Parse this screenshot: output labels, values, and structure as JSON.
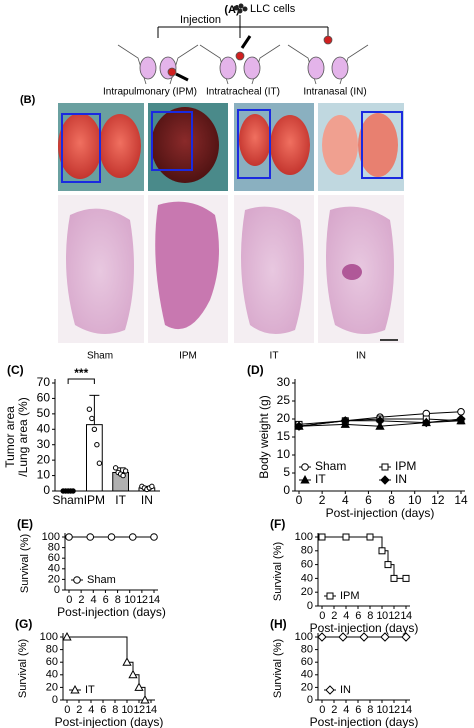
{
  "figure": {
    "panel_a": "(A)",
    "cells": "LLC cells",
    "injection": "Injection",
    "routes": [
      "Intrapulmonary (IPM)",
      "Intratracheal (IT)",
      "Intranasal (IN)"
    ],
    "panel_b": "(B)",
    "groups": [
      "Sham",
      "IPM",
      "IT",
      "IN"
    ]
  },
  "chart_data": [
    {
      "type": "bar",
      "panel": "(C)",
      "ylabel": [
        "Tumor area",
        "/Lung area (%)"
      ],
      "categories": [
        "Sham",
        "IPM",
        "IT",
        "IN"
      ],
      "values": [
        0,
        43,
        12,
        2
      ],
      "errors": [
        0,
        19,
        3,
        1
      ],
      "colors": [
        "#ffffff",
        "#ffffff",
        "#b0b0b0",
        "#ffffff"
      ],
      "points": [
        [
          0,
          0,
          0,
          0,
          0
        ],
        [
          53,
          47,
          40,
          30,
          18
        ],
        [
          15,
          12,
          11,
          10,
          13
        ],
        [
          3,
          2,
          1,
          2,
          3
        ]
      ],
      "annotation": "***",
      "ylim": [
        0,
        70
      ],
      "yticks": [
        0,
        10,
        20,
        30,
        40,
        50,
        60,
        70
      ]
    },
    {
      "type": "line",
      "panel": "(D)",
      "ylabel": "Body weight (g)",
      "xlabel": "Post-injection (days)",
      "xlim": [
        0,
        14
      ],
      "xticks": [
        0,
        2,
        4,
        6,
        8,
        10,
        12,
        14
      ],
      "ylim": [
        0,
        30
      ],
      "yticks": [
        0,
        5,
        10,
        15,
        20,
        25,
        30
      ],
      "series": [
        {
          "name": "Sham",
          "marker": "circle",
          "fill": "#ffffff",
          "x": [
            0,
            4,
            7,
            11,
            14
          ],
          "values": [
            18,
            19.5,
            20.5,
            21.5,
            22
          ]
        },
        {
          "name": "IPM",
          "marker": "square",
          "fill": "#ffffff",
          "x": [
            0,
            4,
            7,
            11,
            14
          ],
          "values": [
            18.5,
            19.5,
            20,
            20,
            19.5
          ]
        },
        {
          "name": "IT",
          "marker": "triangle",
          "fill": "#000000",
          "x": [
            0,
            4,
            7,
            11,
            14
          ],
          "values": [
            18,
            18.5,
            18,
            19,
            19.5
          ]
        },
        {
          "name": "IN",
          "marker": "diamond",
          "fill": "#000000",
          "x": [
            0,
            4,
            7,
            11,
            14
          ],
          "values": [
            18,
            19.5,
            19.5,
            19,
            20
          ]
        }
      ]
    },
    {
      "type": "step",
      "panel": "(E)",
      "ylabel": "Survival (%)",
      "xlabel": "Post-injection (days)",
      "xlim": [
        0,
        14
      ],
      "xticks": [
        0,
        2,
        4,
        6,
        8,
        10,
        12,
        14
      ],
      "ylim": [
        0,
        100
      ],
      "yticks": [
        0,
        20,
        40,
        60,
        80,
        100
      ],
      "series": [
        {
          "name": "Sham",
          "marker": "circle",
          "fill": "#ffffff",
          "x": [
            0,
            3.5,
            7,
            10.5,
            14
          ],
          "values": [
            100,
            100,
            100,
            100,
            100
          ]
        }
      ]
    },
    {
      "type": "step",
      "panel": "(F)",
      "ylabel": "Survival (%)",
      "xlabel": "Post-injection (days)",
      "xlim": [
        0,
        14
      ],
      "xticks": [
        0,
        2,
        4,
        6,
        8,
        10,
        12,
        14
      ],
      "ylim": [
        0,
        100
      ],
      "yticks": [
        0,
        20,
        40,
        60,
        80,
        100
      ],
      "series": [
        {
          "name": "IPM",
          "marker": "square",
          "fill": "#ffffff",
          "x": [
            0,
            4,
            8,
            10,
            11,
            12,
            14
          ],
          "values": [
            100,
            100,
            100,
            80,
            60,
            40,
            40
          ]
        }
      ]
    },
    {
      "type": "step",
      "panel": "(G)",
      "ylabel": "Survival (%)",
      "xlabel": "Post-injection (days)",
      "xlim": [
        0,
        14
      ],
      "xticks": [
        0,
        2,
        4,
        6,
        8,
        10,
        12,
        14
      ],
      "ylim": [
        0,
        100
      ],
      "yticks": [
        0,
        20,
        40,
        60,
        80,
        100
      ],
      "series": [
        {
          "name": "IT",
          "marker": "triangle",
          "fill": "#ffffff",
          "x": [
            0,
            10,
            11,
            12,
            13
          ],
          "values": [
            100,
            60,
            40,
            20,
            0
          ]
        }
      ]
    },
    {
      "type": "step",
      "panel": "(H)",
      "ylabel": "Survival (%)",
      "xlabel": "Post-injection (days)",
      "xlim": [
        0,
        14
      ],
      "xticks": [
        0,
        2,
        4,
        6,
        8,
        10,
        12,
        14
      ],
      "ylim": [
        0,
        100
      ],
      "yticks": [
        0,
        20,
        40,
        60,
        80,
        100
      ],
      "series": [
        {
          "name": "IN",
          "marker": "diamond",
          "fill": "#ffffff",
          "x": [
            0,
            3.5,
            7,
            10.5,
            14
          ],
          "values": [
            100,
            100,
            100,
            100,
            100
          ]
        }
      ]
    }
  ]
}
